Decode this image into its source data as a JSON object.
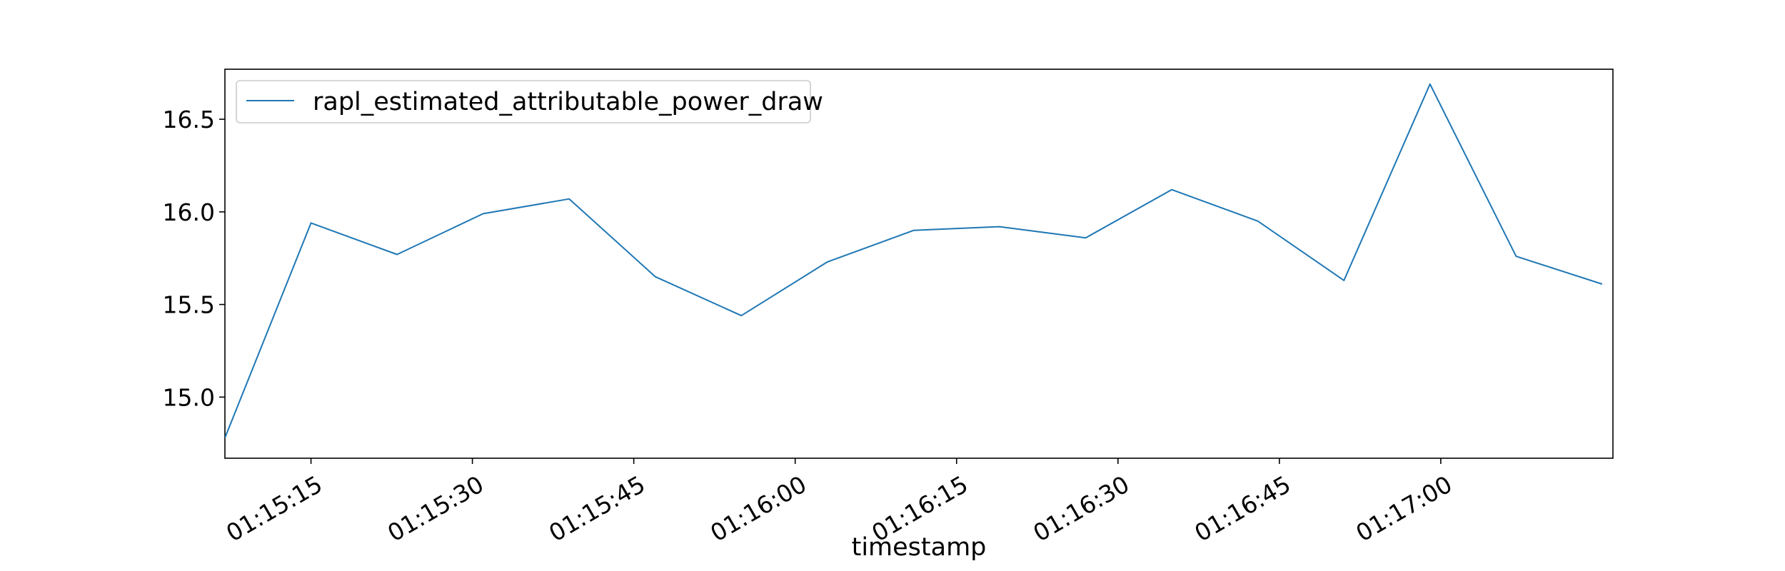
{
  "chart_data": {
    "type": "line",
    "title": "",
    "xlabel": "timestamp",
    "ylabel": "",
    "x": [
      "01:15:07",
      "01:15:15",
      "01:15:23",
      "01:15:31",
      "01:15:39",
      "01:15:47",
      "01:15:55",
      "01:16:03",
      "01:16:11",
      "01:16:19",
      "01:16:27",
      "01:16:35",
      "01:16:43",
      "01:16:51",
      "01:16:59",
      "01:17:07",
      "01:17:15"
    ],
    "x_seconds": [
      427,
      435,
      443,
      451,
      459,
      467,
      475,
      483,
      491,
      499,
      507,
      515,
      523,
      531,
      539,
      547,
      555
    ],
    "xlim_seconds": [
      427,
      556
    ],
    "xticks": [
      {
        "label": "01:15:15",
        "seconds": 435
      },
      {
        "label": "01:15:30",
        "seconds": 450
      },
      {
        "label": "01:15:45",
        "seconds": 465
      },
      {
        "label": "01:16:00",
        "seconds": 480
      },
      {
        "label": "01:16:15",
        "seconds": 495
      },
      {
        "label": "01:16:30",
        "seconds": 510
      },
      {
        "label": "01:16:45",
        "seconds": 525
      },
      {
        "label": "01:17:00",
        "seconds": 540
      }
    ],
    "ylim": [
      14.67,
      16.77
    ],
    "yticks": [
      {
        "label": "15.0",
        "value": 15.0
      },
      {
        "label": "15.5",
        "value": 15.5
      },
      {
        "label": "16.0",
        "value": 16.0
      },
      {
        "label": "16.5",
        "value": 16.5
      }
    ],
    "series": [
      {
        "name": "rapl_estimated_attributable_power_draw",
        "color": "#1f77b4",
        "values": [
          14.78,
          15.94,
          15.77,
          15.99,
          16.07,
          15.65,
          15.44,
          15.73,
          15.9,
          15.92,
          15.86,
          16.12,
          15.95,
          15.63,
          16.69,
          15.76,
          15.61
        ]
      }
    ],
    "legend_position": "top-left",
    "grid": false
  }
}
